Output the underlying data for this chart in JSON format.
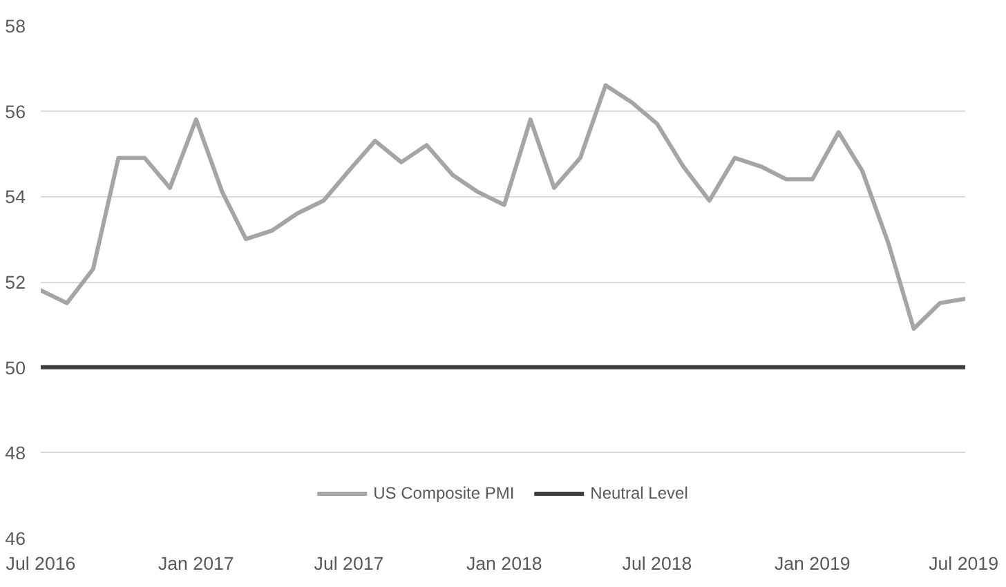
{
  "chart_data": {
    "type": "line",
    "x": [
      "2016-07",
      "2016-08",
      "2016-09",
      "2016-10",
      "2016-11",
      "2016-12",
      "2017-01",
      "2017-02",
      "2017-03",
      "2017-04",
      "2017-05",
      "2017-06",
      "2017-07",
      "2017-08",
      "2017-09",
      "2017-10",
      "2017-11",
      "2017-12",
      "2018-01",
      "2018-02",
      "2018-03",
      "2018-04",
      "2018-05",
      "2018-06",
      "2018-07",
      "2018-08",
      "2018-09",
      "2018-10",
      "2018-11",
      "2018-12",
      "2019-01",
      "2019-02",
      "2019-03",
      "2019-04",
      "2019-05",
      "2019-06",
      "2019-07"
    ],
    "series": [
      {
        "name": "US Composite PMI",
        "color": "#a5a5a5",
        "values": [
          51.8,
          51.5,
          52.3,
          54.9,
          54.9,
          54.2,
          55.8,
          54.1,
          53.0,
          53.2,
          53.6,
          53.9,
          54.6,
          55.3,
          54.8,
          55.2,
          54.5,
          54.1,
          53.8,
          55.8,
          54.2,
          54.9,
          56.6,
          56.2,
          55.7,
          54.7,
          53.9,
          54.9,
          54.7,
          54.4,
          54.4,
          55.5,
          54.6,
          52.9,
          50.9,
          51.5,
          51.6
        ]
      },
      {
        "name": "Neutral Level",
        "color": "#404040",
        "values": [
          50,
          50,
          50,
          50,
          50,
          50,
          50,
          50,
          50,
          50,
          50,
          50,
          50,
          50,
          50,
          50,
          50,
          50,
          50,
          50,
          50,
          50,
          50,
          50,
          50,
          50,
          50,
          50,
          50,
          50,
          50,
          50,
          50,
          50,
          50,
          50,
          50
        ]
      }
    ],
    "xlim": [
      "2016-07",
      "2019-07"
    ],
    "xticks": [
      {
        "value": "2016-07",
        "label": "Jul 2016"
      },
      {
        "value": "2017-01",
        "label": "Jan 2017"
      },
      {
        "value": "2017-07",
        "label": "Jul 2017"
      },
      {
        "value": "2018-01",
        "label": "Jan 2018"
      },
      {
        "value": "2018-07",
        "label": "Jul 2018"
      },
      {
        "value": "2019-01",
        "label": "Jan 2019"
      },
      {
        "value": "2019-07",
        "label": "Jul 2019"
      }
    ],
    "ylim": [
      46,
      58
    ],
    "yticks": [
      46,
      48,
      50,
      52,
      54,
      56,
      58
    ],
    "grid": "y",
    "legend": "bottom",
    "marker": "none",
    "line_style": "solid"
  }
}
